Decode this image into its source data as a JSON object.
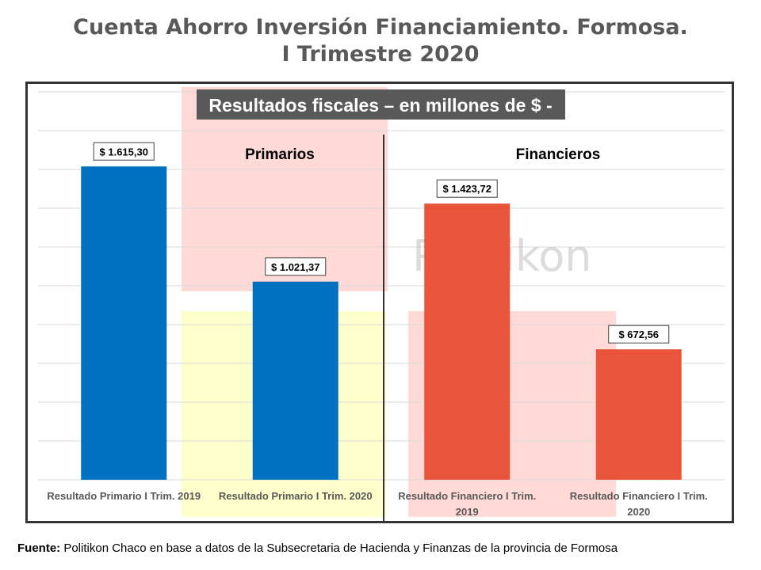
{
  "page": {
    "title_line1": "Cuenta Ahorro Inversión Financiamiento. Formosa.",
    "title_line2": "I Trimestre 2020",
    "source_label": "Fuente:",
    "source_text": " Politikon Chaco en base a datos de la Subsecretaria de Hacienda y Finanzas de la provincia de Formosa"
  },
  "chart_data": {
    "type": "bar",
    "title": "Resultados fiscales – en millones de $ -",
    "group_labels": [
      "Primarios",
      "Financieros"
    ],
    "watermark": "Politikon",
    "categories": [
      [
        "Resultado Primario I Trim. 2019"
      ],
      [
        "Resultado Primario I Trim. 2020"
      ],
      [
        "Resultado Financiero I Trim.",
        "2019"
      ],
      [
        "Resultado Financiero I Trim.",
        "2020"
      ]
    ],
    "values": [
      1615.3,
      1021.37,
      1423.72,
      672.56
    ],
    "data_labels": [
      "$ 1.615,30",
      "$ 1.021,37",
      "$ 1.423,72",
      "$ 672,56"
    ],
    "bar_colors": [
      "#0070C0",
      "#0070C0",
      "#E8553A",
      "#E8553A"
    ],
    "ylim": [
      0,
      2000
    ],
    "grid": true,
    "legend": "none"
  }
}
